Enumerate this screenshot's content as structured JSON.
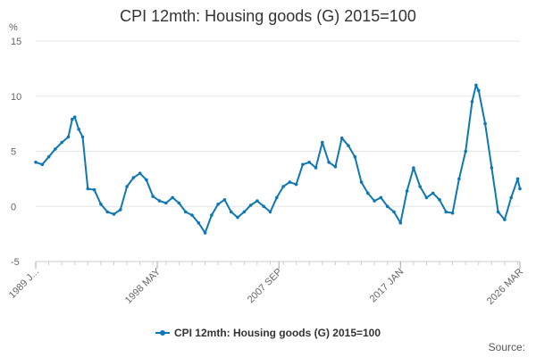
{
  "page": {
    "source_label": "Source:"
  },
  "chart_data": {
    "type": "line",
    "title": "CPI 12mth: Housing goods (G) 2015=100",
    "ylabel": "%",
    "xlabel": "",
    "ylim": [
      -5,
      15
    ],
    "yticks": [
      -5,
      0,
      5,
      10,
      15
    ],
    "xlim": [
      1989.0,
      2026.17
    ],
    "xticks": [
      {
        "x": 1989.0,
        "label": "1989 J..."
      },
      {
        "x": 1998.33,
        "label": "1998 MAY"
      },
      {
        "x": 2007.67,
        "label": "2007 SEP"
      },
      {
        "x": 2017.0,
        "label": "2017 JAN"
      },
      {
        "x": 2026.17,
        "label": "2026 MAR"
      }
    ],
    "grid": true,
    "legend_position": "bottom",
    "color": "#0d78b5",
    "series": [
      {
        "name": "CPI 12mth: Housing goods (G) 2015=100",
        "x": [
          1989.0,
          1989.5,
          1990.0,
          1990.5,
          1991.0,
          1991.5,
          1991.8,
          1992.0,
          1992.3,
          1992.6,
          1993.0,
          1993.5,
          1994.0,
          1994.5,
          1995.0,
          1995.5,
          1996.0,
          1996.5,
          1997.0,
          1997.5,
          1998.0,
          1998.5,
          1999.0,
          1999.5,
          2000.0,
          2000.5,
          2001.0,
          2001.5,
          2002.0,
          2002.5,
          2003.0,
          2003.5,
          2004.0,
          2004.5,
          2005.0,
          2005.5,
          2006.0,
          2006.5,
          2007.0,
          2007.5,
          2008.0,
          2008.5,
          2009.0,
          2009.5,
          2010.0,
          2010.5,
          2011.0,
          2011.5,
          2012.0,
          2012.5,
          2013.0,
          2013.5,
          2014.0,
          2014.5,
          2015.0,
          2015.5,
          2016.0,
          2016.5,
          2017.0,
          2017.5,
          2018.0,
          2018.5,
          2019.0,
          2019.5,
          2020.0,
          2020.5,
          2021.0,
          2021.5,
          2022.0,
          2022.5,
          2022.8,
          2023.0,
          2023.5,
          2024.0,
          2024.5,
          2025.0,
          2025.5,
          2026.0,
          2026.17
        ],
        "values": [
          4.0,
          3.8,
          4.5,
          5.2,
          5.8,
          6.3,
          7.9,
          8.1,
          7.0,
          6.3,
          1.6,
          1.5,
          0.2,
          -0.5,
          -0.7,
          -0.3,
          1.8,
          2.6,
          3.0,
          2.4,
          0.9,
          0.5,
          0.3,
          0.8,
          0.3,
          -0.5,
          -0.8,
          -1.5,
          -2.4,
          -0.8,
          0.2,
          0.6,
          -0.5,
          -1.0,
          -0.5,
          0.1,
          0.5,
          0.0,
          -0.5,
          0.8,
          1.8,
          2.2,
          2.0,
          3.8,
          4.0,
          3.5,
          5.8,
          4.0,
          3.6,
          6.2,
          5.5,
          4.5,
          2.2,
          1.2,
          0.5,
          0.8,
          0.0,
          -0.5,
          -1.5,
          1.4,
          3.5,
          1.8,
          0.8,
          1.2,
          0.6,
          -0.5,
          -0.6,
          2.5,
          5.0,
          9.5,
          11.0,
          10.5,
          7.5,
          3.5,
          -0.5,
          -1.2,
          0.8,
          2.5,
          1.6
        ]
      }
    ]
  }
}
